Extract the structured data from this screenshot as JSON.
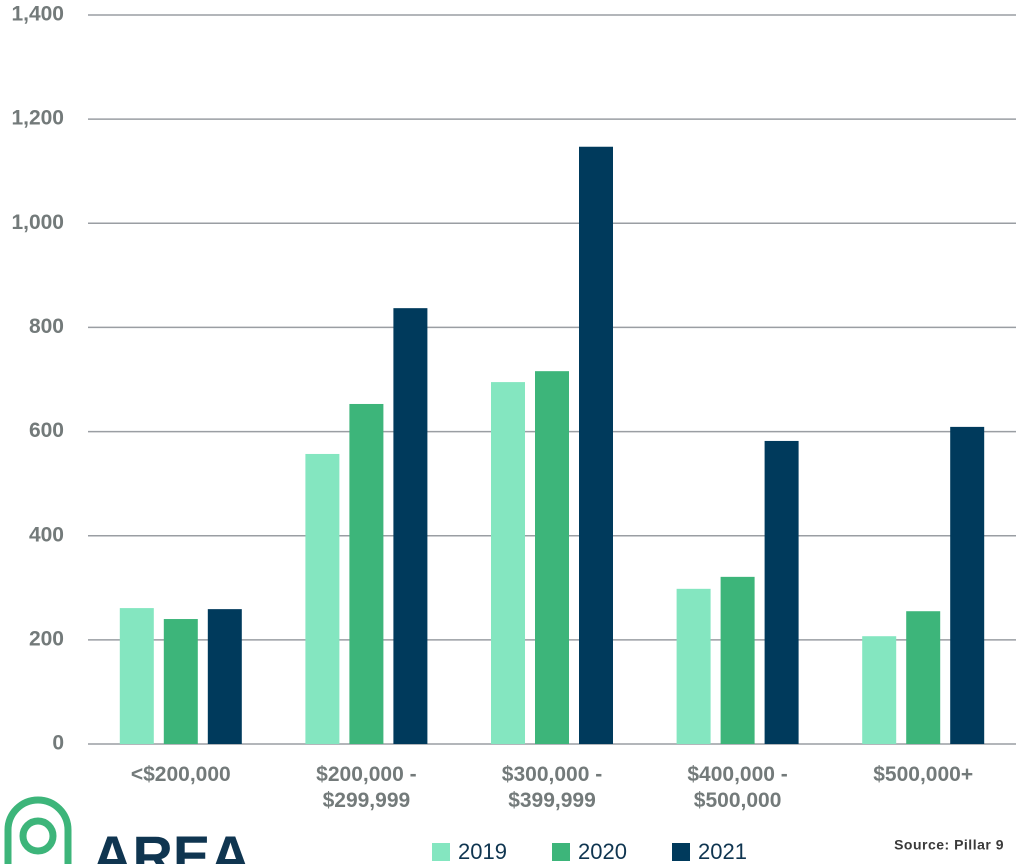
{
  "chart_data": {
    "type": "bar",
    "categories": [
      "<$200,000",
      "$200,000 -\n$299,999",
      "$300,000 -\n$399,999",
      "$400,000 -\n$500,000",
      "$500,000+"
    ],
    "series": [
      {
        "name": "2019",
        "color": "#84e6c0",
        "values": [
          261,
          557,
          695,
          298,
          207
        ]
      },
      {
        "name": "2020",
        "color": "#3db57a",
        "values": [
          240,
          653,
          716,
          321,
          255
        ]
      },
      {
        "name": "2021",
        "color": "#003a5c",
        "values": [
          259,
          837,
          1147,
          582,
          609
        ]
      }
    ],
    "ylim": [
      0,
      1400
    ],
    "yticks": [
      0,
      200,
      400,
      600,
      800,
      {
        "value": 1000,
        "label": "1,000"
      },
      {
        "value": 1200,
        "label": "1,200"
      },
      {
        "value": 1400,
        "label": "1,400"
      }
    ],
    "grid": true,
    "legend": "bottom",
    "source": "Source: Pillar 9",
    "logo_text": "AREA"
  }
}
